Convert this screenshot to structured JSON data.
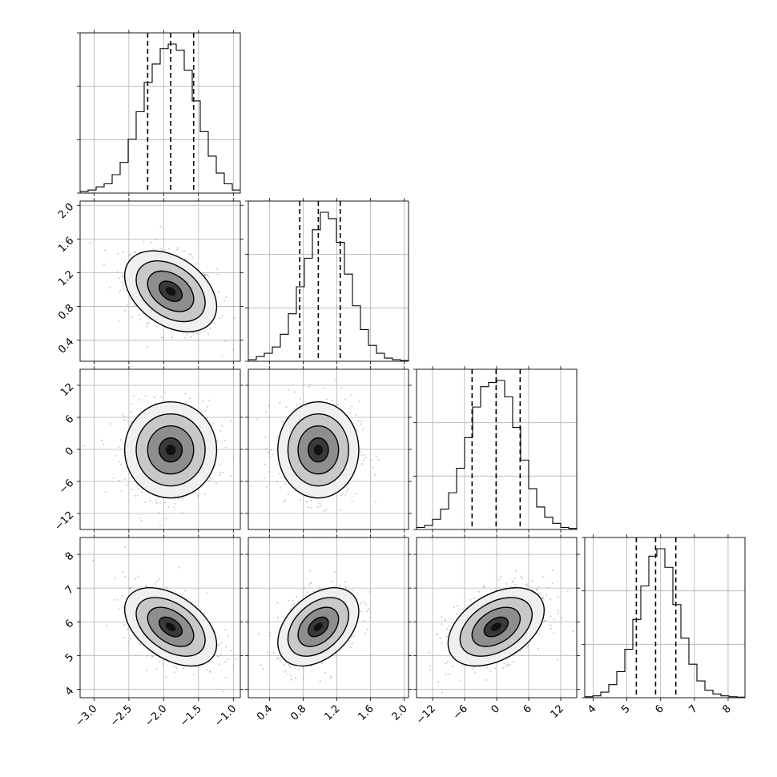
{
  "chart_data": {
    "type": "corner",
    "grid": true,
    "parameters": [
      {
        "lim": [
          -3.2,
          -0.9
        ],
        "ticks": [
          -3.0,
          -2.5,
          -2.0,
          -1.5,
          -1.0
        ],
        "tick_labels": [
          "−3.0",
          "−2.5",
          "−2.0",
          "−1.5",
          "−1.0"
        ],
        "quantiles": [
          -2.23,
          -1.9,
          -1.57
        ],
        "hist": [
          0.01,
          0.02,
          0.04,
          0.06,
          0.12,
          0.2,
          0.35,
          0.53,
          0.72,
          0.84,
          0.94,
          0.97,
          0.93,
          0.8,
          0.6,
          0.4,
          0.24,
          0.13,
          0.06,
          0.02
        ]
      },
      {
        "lim": [
          0.15,
          2.05
        ],
        "ticks": [
          0.4,
          0.8,
          1.2,
          1.6,
          2.0
        ],
        "tick_labels": [
          "0.4",
          "0.8",
          "1.2",
          "1.6",
          "2.0"
        ],
        "quantiles": [
          0.76,
          0.98,
          1.24
        ],
        "hist": [
          0.01,
          0.03,
          0.05,
          0.09,
          0.17,
          0.3,
          0.47,
          0.65,
          0.83,
          0.94,
          0.9,
          0.75,
          0.55,
          0.35,
          0.2,
          0.1,
          0.05,
          0.02,
          0.01,
          0.005
        ]
      },
      {
        "lim": [
          -15,
          15
        ],
        "ticks": [
          -12,
          -6,
          0,
          6,
          12
        ],
        "tick_labels": [
          "−12",
          "−6",
          "0",
          "6",
          "12"
        ],
        "quantiles": [
          -4.6,
          -0.1,
          4.4
        ],
        "hist": [
          0.01,
          0.02,
          0.05,
          0.1,
          0.18,
          0.3,
          0.45,
          0.6,
          0.7,
          0.72,
          0.73,
          0.65,
          0.5,
          0.34,
          0.2,
          0.11,
          0.06,
          0.03,
          0.01,
          0.005
        ]
      },
      {
        "lim": [
          3.75,
          8.5
        ],
        "ticks": [
          4,
          5,
          6,
          7,
          8
        ],
        "tick_labels": [
          "4",
          "5",
          "6",
          "7",
          "8"
        ],
        "quantiles": [
          5.28,
          5.85,
          6.45
        ],
        "hist": [
          0.005,
          0.01,
          0.03,
          0.07,
          0.14,
          0.26,
          0.42,
          0.6,
          0.76,
          0.8,
          0.7,
          0.5,
          0.32,
          0.18,
          0.09,
          0.04,
          0.02,
          0.01,
          0.005,
          0.003
        ]
      }
    ],
    "pairs": [
      {
        "row": 1,
        "col": 0,
        "mean": [
          -1.9,
          0.98
        ],
        "sd": [
          0.33,
          0.24
        ],
        "rho": -0.38
      },
      {
        "row": 2,
        "col": 0,
        "mean": [
          -1.9,
          -0.1
        ],
        "sd": [
          0.33,
          4.5
        ],
        "rho": 0.0
      },
      {
        "row": 2,
        "col": 1,
        "mean": [
          0.98,
          -0.1
        ],
        "sd": [
          0.24,
          4.5
        ],
        "rho": 0.0
      },
      {
        "row": 3,
        "col": 0,
        "mean": [
          -1.9,
          5.85
        ],
        "sd": [
          0.33,
          0.58
        ],
        "rho": -0.45
      },
      {
        "row": 3,
        "col": 1,
        "mean": [
          0.98,
          5.85
        ],
        "sd": [
          0.24,
          0.58
        ],
        "rho": 0.4
      },
      {
        "row": 3,
        "col": 2,
        "mean": [
          -0.1,
          5.85
        ],
        "sd": [
          4.5,
          0.58
        ],
        "rho": 0.42
      }
    ],
    "contour_levels_sigma": [
      0.5,
      1.0,
      1.5,
      2.0
    ],
    "n_scatter_points_per_panel": 600
  }
}
